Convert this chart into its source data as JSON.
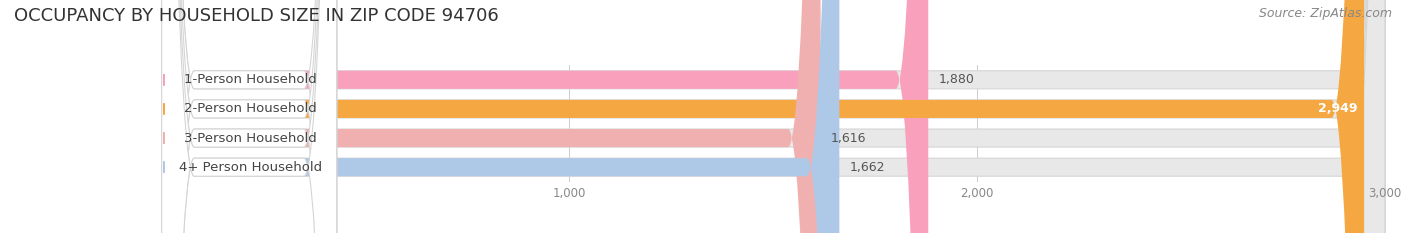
{
  "title": "OCCUPANCY BY HOUSEHOLD SIZE IN ZIP CODE 94706",
  "source": "Source: ZipAtlas.com",
  "categories": [
    "1-Person Household",
    "2-Person Household",
    "3-Person Household",
    "4+ Person Household"
  ],
  "values": [
    1880,
    2949,
    1616,
    1662
  ],
  "bar_colors": [
    "#f9a0bc",
    "#f5a742",
    "#f0b0b0",
    "#aec8e8"
  ],
  "dot_colors": [
    "#f9a0bc",
    "#f5a742",
    "#f0b0b0",
    "#aec8e8"
  ],
  "background_color": "#ffffff",
  "bar_track_color": "#e8e8e8",
  "xlim": [
    0,
    3000
  ],
  "xticks": [
    1000,
    2000,
    3000
  ],
  "title_fontsize": 13,
  "source_fontsize": 9,
  "bar_height": 0.62,
  "value_label_fontsize": 9,
  "category_fontsize": 9.5
}
